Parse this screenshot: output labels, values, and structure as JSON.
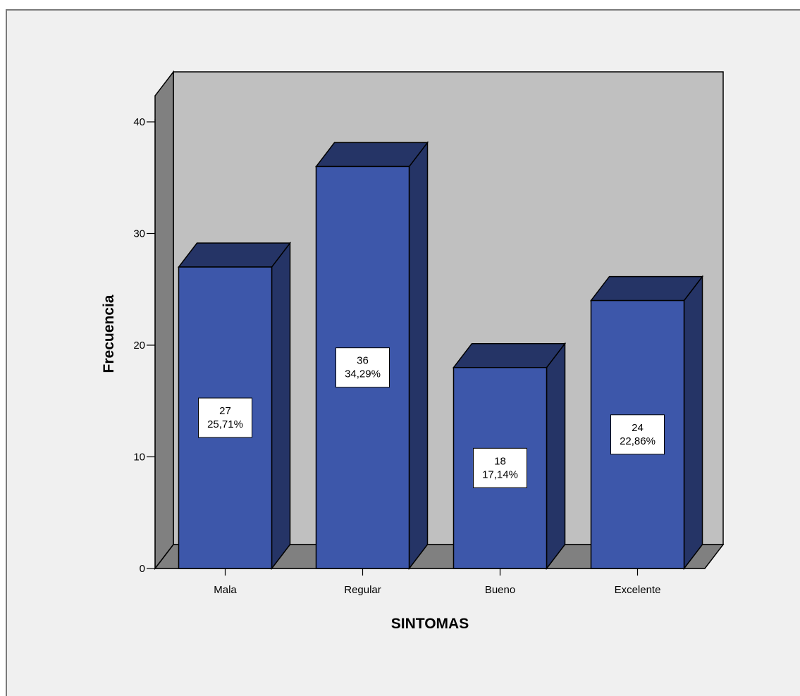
{
  "chart_data": {
    "type": "bar",
    "style": "3d",
    "categories": [
      "Mala",
      "Regular",
      "Bueno",
      "Excelente"
    ],
    "values": [
      27,
      36,
      18,
      24
    ],
    "percent_labels": [
      "25,71%",
      "34,29%",
      "17,14%",
      "22,86%"
    ],
    "xlabel": "SINTOMAS",
    "ylabel": "Frecuencia",
    "ylim": [
      0,
      40
    ],
    "yticks": [
      0,
      10,
      20,
      30,
      40
    ],
    "grid": false,
    "legend": "none"
  },
  "colors": {
    "background": "#f0f0f0",
    "back_wall": "#c0c0c0",
    "side_wall": "#808080",
    "floor": "#808080",
    "bar_front": "#3d57aa",
    "bar_side": "#253466",
    "bar_top": "#253466",
    "outline": "#000000",
    "label_box": "#ffffff"
  }
}
